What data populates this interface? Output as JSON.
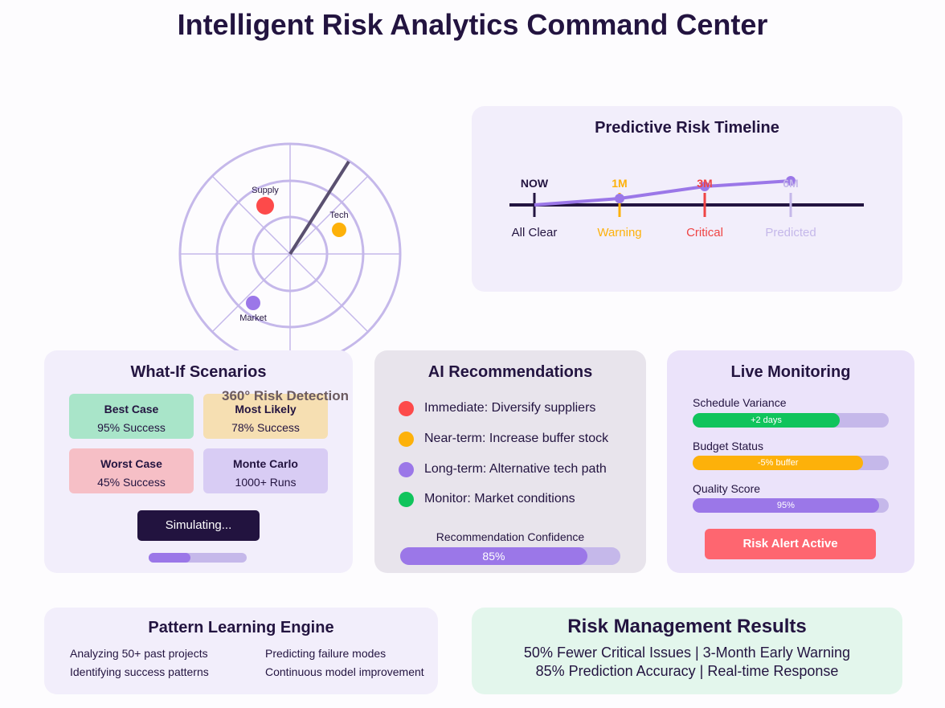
{
  "page": {
    "title": "Intelligent Risk Analytics Command Center"
  },
  "radar": {
    "caption": "360° Risk Detection",
    "blips": [
      {
        "label": "Supply",
        "color": "#fd4a4a"
      },
      {
        "label": "Tech",
        "color": "#fdb10a"
      },
      {
        "label": "Market",
        "color": "#9b77e8"
      }
    ]
  },
  "timeline": {
    "title": "Predictive Risk Timeline",
    "points": [
      {
        "top": "NOW",
        "bottom": "All Clear",
        "color": "#231440"
      },
      {
        "top": "1M",
        "bottom": "Warning",
        "color": "#fdb10a"
      },
      {
        "top": "3M",
        "bottom": "Critical",
        "color": "#ef4444"
      },
      {
        "top": "6M",
        "bottom": "Predicted",
        "color": "#c5b8ea"
      }
    ]
  },
  "scenarios": {
    "title": "What-If Scenarios",
    "cards": [
      {
        "name": "Best Case",
        "value": "95% Success",
        "color": "#a9e5c9"
      },
      {
        "name": "Most Likely",
        "value": "78% Success",
        "color": "#f6dfb2"
      },
      {
        "name": "Worst Case",
        "value": "45% Success",
        "color": "#f6bfc6"
      },
      {
        "name": "Monte Carlo",
        "value": "1000+ Runs",
        "color": "#d8ccf4"
      }
    ],
    "button_label": "Simulating...",
    "progress": 0.43
  },
  "recommendations": {
    "title": "AI Recommendations",
    "items": [
      {
        "text": "Immediate: Diversify suppliers",
        "color": "#fd4a4a"
      },
      {
        "text": "Near-term: Increase buffer stock",
        "color": "#fdb10a"
      },
      {
        "text": "Long-term: Alternative tech path",
        "color": "#9b77e8"
      },
      {
        "text": "Monitor: Market conditions",
        "color": "#10c45c"
      }
    ],
    "confidence_label": "Recommendation Confidence",
    "confidence_text": "85%",
    "confidence": 0.85
  },
  "monitoring": {
    "title": "Live Monitoring",
    "metrics": [
      {
        "label": "Schedule Variance",
        "bar_text": "+2 days",
        "fill": 0.75,
        "color": "#10c45c"
      },
      {
        "label": "Budget Status",
        "bar_text": "-5% buffer",
        "fill": 0.87,
        "color": "#fdb10a"
      },
      {
        "label": "Quality Score",
        "bar_text": "95%",
        "fill": 0.95,
        "color": "#9b77e8"
      }
    ],
    "alert_label": "Risk Alert Active"
  },
  "pattern": {
    "title": "Pattern Learning Engine",
    "items": [
      "Analyzing 50+ past projects",
      "Predicting failure modes",
      "Identifying success patterns",
      "Continuous model improvement"
    ]
  },
  "results": {
    "title": "Risk Management Results",
    "line1": "50% Fewer Critical Issues | 3-Month Early Warning",
    "line2": "85% Prediction Accuracy | Real-time Response"
  }
}
